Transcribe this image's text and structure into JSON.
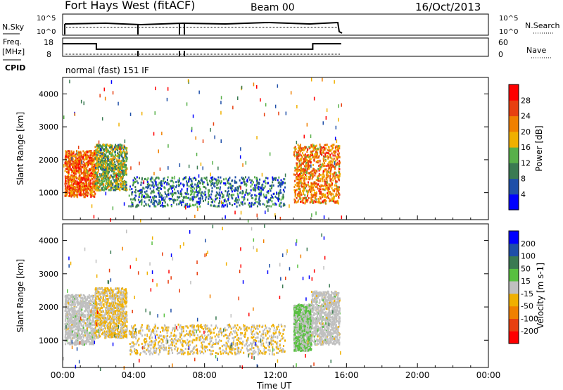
{
  "header": {
    "station": "Fort Hays West (fitACF)",
    "beam": "Beam 00",
    "date": "16/Oct/2013"
  },
  "nsky_panel": {
    "left_label": "N.Sky",
    "right_label": "N.Search",
    "left_ticks": [
      "10^5",
      "10^0"
    ],
    "right_ticks": [
      "10^5",
      "10^0"
    ]
  },
  "freq_panel": {
    "left_label_1": "Freq.",
    "left_label_2": "[MHz]",
    "left_ticks": [
      "18",
      "8"
    ],
    "right_ticks": [
      "60",
      "0"
    ],
    "right_label": "Nave",
    "cpid_label": "CPID",
    "cpid_text": "normal (fast) 151 IF"
  },
  "chart_data": [
    {
      "type": "line",
      "title": "Freq. [MHz] / Nave",
      "x_unit": "hours UT",
      "series": [
        {
          "name": "Freq.",
          "x": [
            0.0,
            1.9,
            1.9,
            14.1,
            14.1,
            15.7
          ],
          "values": [
            14.9,
            14.9,
            11.9,
            11.9,
            14.9,
            14.9
          ]
        }
      ],
      "ylim": [
        8,
        18
      ]
    },
    {
      "type": "heatmap",
      "title": "Power",
      "ylabel": "Slant Range [km]",
      "yticks": [
        "1000",
        "2000",
        "3000",
        "4000"
      ],
      "ylim": [
        180,
        4500
      ],
      "colorbar_label": "Power [dB]",
      "colorbar_ticks": [
        "4",
        "8",
        "12",
        "16",
        "20",
        "24",
        "28"
      ],
      "colorbar_range": [
        0,
        32
      ],
      "colors": [
        "#0000ff",
        "#1f4fa8",
        "#3a7a52",
        "#58b04a",
        "#f0b000",
        "#f08000",
        "#e84010",
        "#ff0000"
      ],
      "regions": [
        {
          "x": [
            0.1,
            1.8
          ],
          "y": [
            900,
            2300
          ],
          "level": 24
        },
        {
          "x": [
            1.8,
            3.6
          ],
          "y": [
            1100,
            2500
          ],
          "level": 14
        },
        {
          "x": [
            3.7,
            12.5
          ],
          "y": [
            600,
            1500
          ],
          "level": 9
        },
        {
          "x": [
            13.0,
            15.6
          ],
          "y": [
            700,
            2500
          ],
          "level": 22
        }
      ]
    },
    {
      "type": "heatmap",
      "title": "Velocity",
      "ylabel": "Slant Range [km]",
      "yticks": [
        "1000",
        "2000",
        "3000",
        "4000"
      ],
      "ylim": [
        180,
        4500
      ],
      "colorbar_label": "Velocity [m s-1]",
      "colorbar_ticks": [
        "-200",
        "-100",
        "-50",
        "-15",
        "15",
        "50",
        "100",
        "200"
      ],
      "colorbar_range": [
        -250,
        250
      ],
      "colors": [
        "#ff0000",
        "#e84010",
        "#f08000",
        "#f0b000",
        "#c0c0c0",
        "#58c040",
        "#3a7a52",
        "#1f4fa8",
        "#0000ff"
      ],
      "regions": [
        {
          "x": [
            0.1,
            1.8
          ],
          "y": [
            900,
            2400
          ],
          "level": 0
        },
        {
          "x": [
            1.8,
            3.6
          ],
          "y": [
            1100,
            2600
          ],
          "level": -30
        },
        {
          "x": [
            3.7,
            12.5
          ],
          "y": [
            600,
            1500
          ],
          "level": -25
        },
        {
          "x": [
            13.0,
            14.0
          ],
          "y": [
            700,
            2100
          ],
          "level": 30
        },
        {
          "x": [
            14.0,
            15.6
          ],
          "y": [
            900,
            2500
          ],
          "level": 0
        }
      ]
    }
  ],
  "x_axis": {
    "label": "Time UT",
    "ticks": [
      "00:00",
      "04:00",
      "08:00",
      "12:00",
      "16:00",
      "20:00",
      "00:00"
    ]
  }
}
